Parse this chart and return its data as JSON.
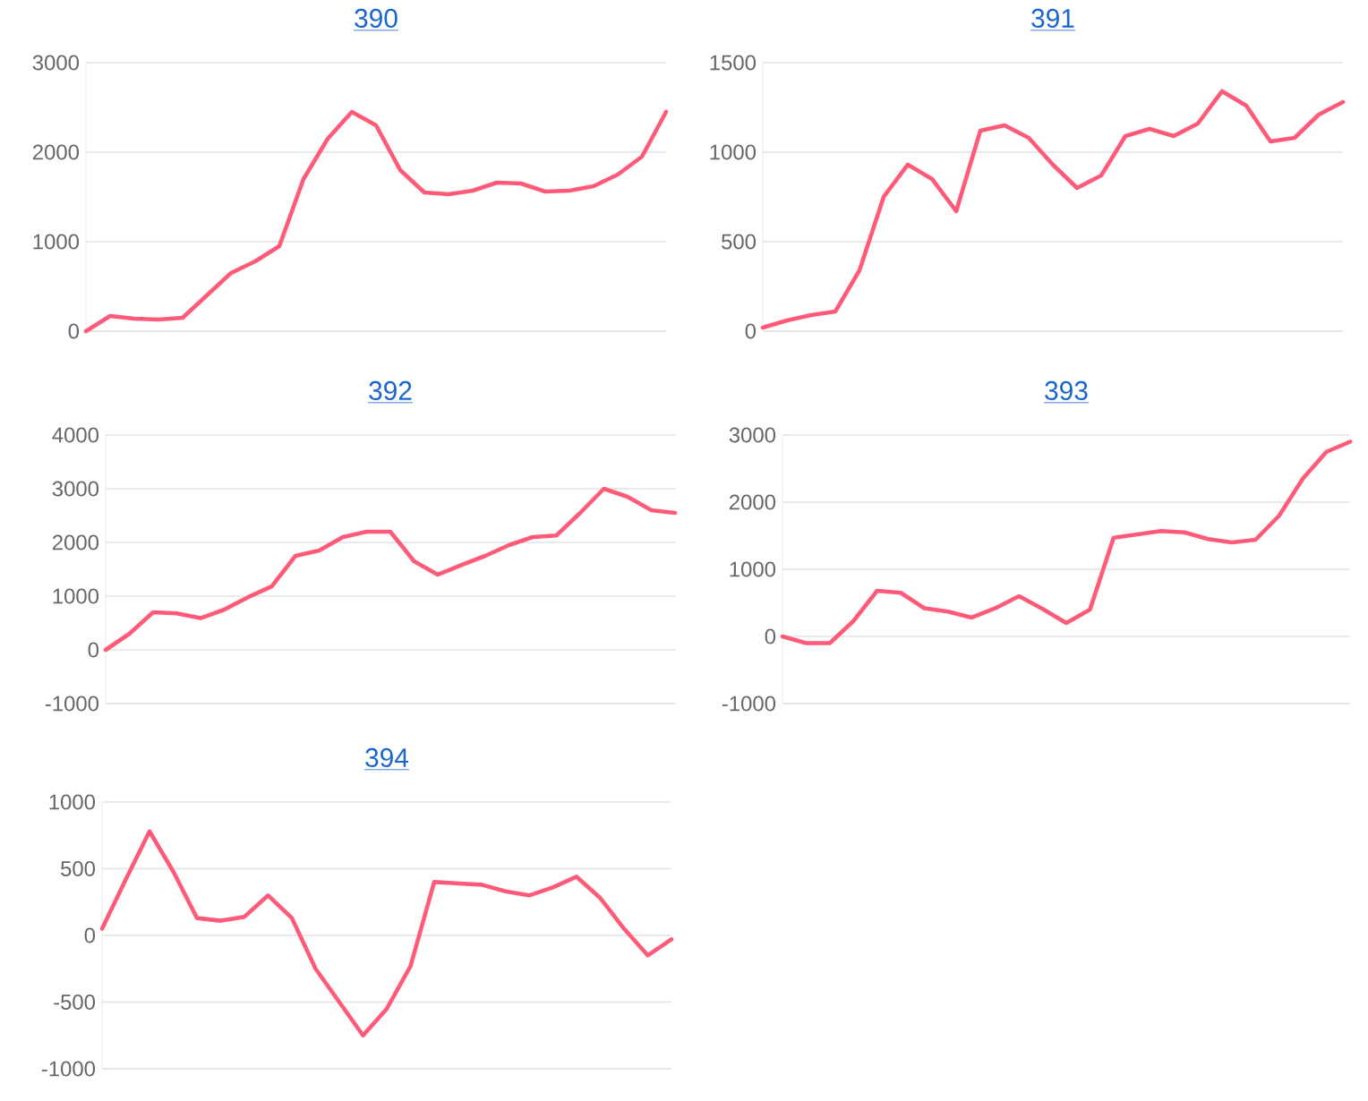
{
  "chart_data": [
    {
      "type": "line",
      "title": "390",
      "categories": [
        null,
        null,
        null,
        null,
        null,
        null,
        null,
        null,
        null,
        null,
        null,
        null,
        null,
        null,
        null,
        null,
        null,
        null,
        null,
        null,
        null,
        null,
        null,
        null,
        null
      ],
      "series": [
        {
          "color": "#ff5a78",
          "values": [
            0,
            170,
            140,
            130,
            150,
            400,
            650,
            780,
            950,
            1700,
            2150,
            2450,
            2300,
            1800,
            1550,
            1530,
            1570,
            1660,
            1650,
            1560,
            1570,
            1620,
            1750,
            1950,
            2450
          ]
        }
      ],
      "ylim": [
        0,
        3000
      ],
      "yticks": [
        0,
        1000,
        2000,
        3000
      ],
      "grid": "y",
      "tick_labels": "y"
    },
    {
      "type": "line",
      "title": "391",
      "categories": [
        null,
        null,
        null,
        null,
        null,
        null,
        null,
        null,
        null,
        null,
        null,
        null,
        null,
        null,
        null,
        null,
        null,
        null,
        null,
        null,
        null,
        null,
        null,
        null,
        null
      ],
      "series": [
        {
          "color": "#ff5a78",
          "values": [
            20,
            60,
            90,
            110,
            340,
            750,
            930,
            850,
            670,
            1120,
            1150,
            1080,
            930,
            800,
            870,
            1090,
            1130,
            1090,
            1160,
            1340,
            1260,
            1060,
            1080,
            1210,
            1280
          ]
        }
      ],
      "ylim": [
        0,
        1500
      ],
      "yticks": [
        0,
        500,
        1000,
        1500
      ],
      "grid": "y",
      "tick_labels": "y"
    },
    {
      "type": "line",
      "title": "392",
      "categories": [
        null,
        null,
        null,
        null,
        null,
        null,
        null,
        null,
        null,
        null,
        null,
        null,
        null,
        null,
        null,
        null,
        null,
        null,
        null,
        null,
        null,
        null,
        null,
        null,
        null
      ],
      "series": [
        {
          "color": "#ff5a78",
          "values": [
            0,
            300,
            700,
            680,
            590,
            750,
            980,
            1180,
            1750,
            1850,
            2100,
            2200,
            2200,
            1650,
            1400,
            1580,
            1750,
            1950,
            2100,
            2130,
            2550,
            3000,
            2850,
            2600,
            2550
          ]
        }
      ],
      "ylim": [
        -1000,
        4000
      ],
      "yticks": [
        -1000,
        0,
        1000,
        2000,
        3000,
        4000
      ],
      "grid": "y",
      "tick_labels": "y"
    },
    {
      "type": "line",
      "title": "393",
      "categories": [
        null,
        null,
        null,
        null,
        null,
        null,
        null,
        null,
        null,
        null,
        null,
        null,
        null,
        null,
        null,
        null,
        null,
        null,
        null,
        null,
        null,
        null,
        null,
        null,
        null
      ],
      "series": [
        {
          "color": "#ff5a78",
          "values": [
            0,
            -100,
            -100,
            230,
            680,
            650,
            420,
            370,
            280,
            420,
            600,
            410,
            200,
            400,
            1470,
            1520,
            1570,
            1550,
            1450,
            1400,
            1440,
            1800,
            2350,
            2750,
            2900
          ]
        }
      ],
      "ylim": [
        -1000,
        3000
      ],
      "yticks": [
        -1000,
        0,
        1000,
        2000,
        3000
      ],
      "grid": "y",
      "tick_labels": "y"
    },
    {
      "type": "line",
      "title": "394",
      "categories": [
        null,
        null,
        null,
        null,
        null,
        null,
        null,
        null,
        null,
        null,
        null,
        null,
        null,
        null,
        null,
        null,
        null,
        null,
        null,
        null,
        null,
        null,
        null,
        null,
        null
      ],
      "series": [
        {
          "color": "#ff5a78",
          "values": [
            50,
            420,
            780,
            480,
            130,
            110,
            140,
            300,
            130,
            -250,
            -500,
            -750,
            -550,
            -230,
            400,
            390,
            380,
            330,
            300,
            360,
            440,
            280,
            50,
            -150,
            -30
          ]
        }
      ],
      "ylim": [
        -1000,
        1000
      ],
      "yticks": [
        -1000,
        -500,
        0,
        500,
        1000
      ],
      "grid": "y",
      "tick_labels": "y"
    }
  ]
}
